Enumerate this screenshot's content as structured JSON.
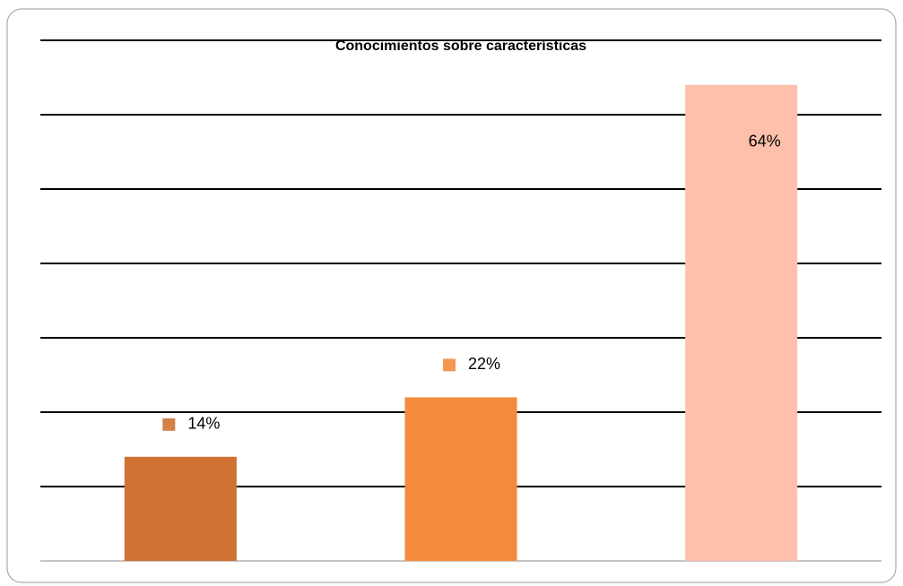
{
  "chart_data": {
    "type": "bar",
    "title": "Conocimientos sobre características",
    "categories": [
      null,
      null,
      null
    ],
    "values": [
      14,
      22,
      64
    ],
    "value_labels": [
      "14%",
      "22%",
      "64%"
    ],
    "colors": [
      "#cf7233",
      "#f48b3c",
      "#ffc0ab"
    ],
    "ylim": [
      0,
      70
    ],
    "yticks": [
      0,
      10,
      20,
      30,
      40,
      50,
      60,
      70
    ],
    "grid": true
  }
}
